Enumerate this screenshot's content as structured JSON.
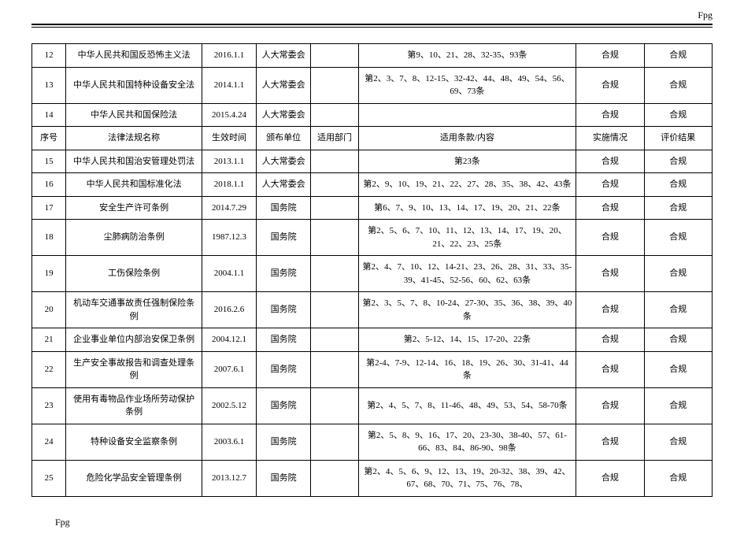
{
  "page_header": "Fpg",
  "page_footer": "Fpg",
  "table": {
    "header_row": {
      "idx": "序号",
      "name": "法律法规名称",
      "date": "生效时间",
      "org": "颁布单位",
      "dept": "适用部门",
      "clauses": "适用条款/内容",
      "impl": "实施情况",
      "eval": "评价结果"
    },
    "rows": [
      {
        "idx": "12",
        "name": "中华人民共和国反恐怖主义法",
        "date": "2016.1.1",
        "org": "人大常委会",
        "dept": "",
        "clauses": "第9、10、21、28、32-35、93条",
        "impl": "合规",
        "eval": "合规"
      },
      {
        "idx": "13",
        "name": "中华人民共和国特种设备安全法",
        "date": "2014.1.1",
        "org": "人大常委会",
        "dept": "",
        "clauses": "第2、3、7、8、12-15、32-42、44、48、49、54、56、69、73条",
        "impl": "合规",
        "eval": "合规"
      },
      {
        "idx": "14",
        "name": "中华人民共和国保险法",
        "date": "2015.4.24",
        "org": "人大常委会",
        "dept": "",
        "clauses": "",
        "impl": "合规",
        "eval": "合规"
      },
      {
        "is_header": true
      },
      {
        "idx": "15",
        "name": "中华人民共和国治安管理处罚法",
        "date": "2013.1.1",
        "org": "人大常委会",
        "dept": "",
        "clauses": "第23条",
        "impl": "合规",
        "eval": "合规"
      },
      {
        "idx": "16",
        "name": "中华人民共和国标准化法",
        "date": "2018.1.1",
        "org": "人大常委会",
        "dept": "",
        "clauses": "第2、9、10、19、21、22、27、28、35、38、42、43条",
        "impl": "合规",
        "eval": "合规"
      },
      {
        "idx": "17",
        "name": "安全生产许可条例",
        "date": "2014.7.29",
        "org": "国务院",
        "dept": "",
        "clauses": "第6、7、9、10、13、14、17、19、20、21、22条",
        "impl": "合规",
        "eval": "合规"
      },
      {
        "idx": "18",
        "name": "尘肺病防治条例",
        "date": "1987.12.3",
        "org": "国务院",
        "dept": "",
        "clauses": "第2、5、6、7、10、11、12、13、14、17、19、20、21、22、23、25条",
        "impl": "合规",
        "eval": "合规"
      },
      {
        "idx": "19",
        "name": "工伤保险条例",
        "date": "2004.1.1",
        "org": "国务院",
        "dept": "",
        "clauses": "第2、4、7、10、12、14-21、23、26、28、31、33、35-39、41-45、52-56、60、62、63条",
        "impl": "合规",
        "eval": "合规"
      },
      {
        "idx": "20",
        "name": "机动车交通事故责任强制保险条例",
        "date": "2016.2.6",
        "org": "国务院",
        "dept": "",
        "clauses": "第2、3、5、7、8、10-24、27-30、35、36、38、39、40条",
        "impl": "合规",
        "eval": "合规"
      },
      {
        "idx": "21",
        "name": "企业事业单位内部治安保卫条例",
        "date": "2004.12.1",
        "org": "国务院",
        "dept": "",
        "clauses": "第2、5-12、14、15、17-20、22条",
        "impl": "合规",
        "eval": "合规"
      },
      {
        "idx": "22",
        "name": "生产安全事故报告和调查处理条例",
        "date": "2007.6.1",
        "org": "国务院",
        "dept": "",
        "clauses": "第2-4、7-9、12-14、16、18、19、26、30、31-41、44条",
        "impl": "合规",
        "eval": "合规"
      },
      {
        "idx": "23",
        "name": "使用有毒物品作业场所劳动保护条例",
        "date": "2002.5.12",
        "org": "国务院",
        "dept": "",
        "clauses": "第2、4、5、7、8、11-46、48、49、53、54、58-70条",
        "impl": "合规",
        "eval": "合规"
      },
      {
        "idx": "24",
        "name": "特种设备安全监察条例",
        "date": "2003.6.1",
        "org": "国务院",
        "dept": "",
        "clauses": "第2、5、8、9、16、17、20、23-30、38-40、57、61-66、83、84、86-90、98条",
        "impl": "合规",
        "eval": "合规"
      },
      {
        "idx": "25",
        "name": "危险化学品安全管理条例",
        "date": "2013.12.7",
        "org": "国务院",
        "dept": "",
        "clauses": "第2、4、5、6、9、12、13、19、20-32、38、39、42、67、68、70、71、75、76、78、",
        "impl": "合规",
        "eval": "合规"
      }
    ]
  },
  "colors": {
    "border": "#000000",
    "text": "#000000",
    "background": "#ffffff"
  },
  "font": {
    "family": "SimSun",
    "size_pt": 11
  }
}
